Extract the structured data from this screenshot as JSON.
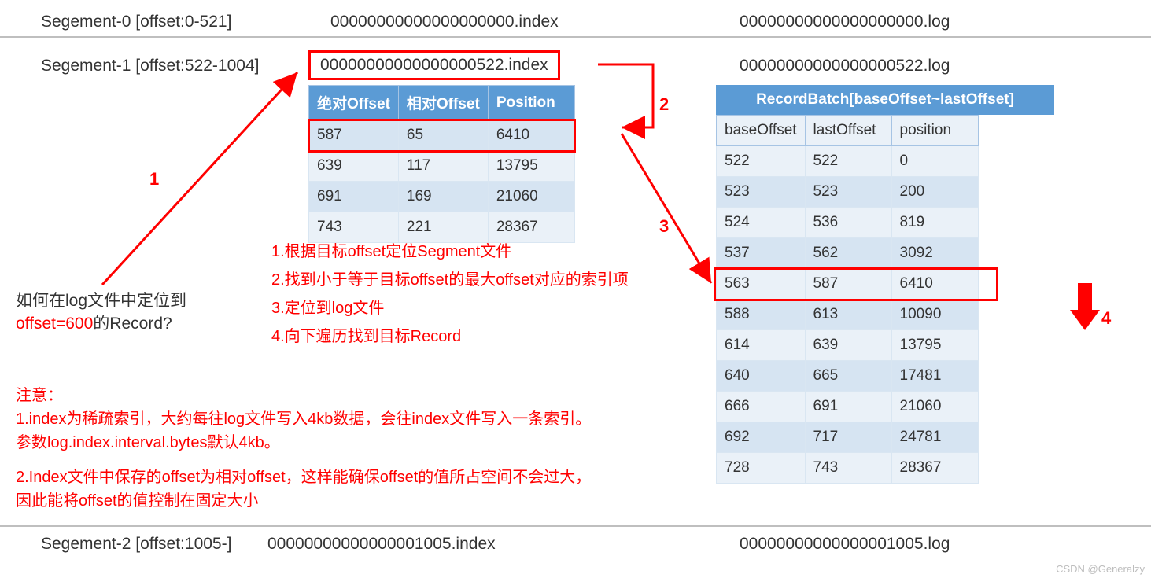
{
  "colors": {
    "red": "#ff0000",
    "header_bg": "#5b9bd5",
    "header_text": "#ffffff",
    "row_even": "#eaf1f8",
    "row_odd": "#d6e4f2",
    "border": "#d9e6f2",
    "hr": "#bfbfbf",
    "text": "#333333",
    "watermark": "#bdbdbd",
    "background": "#ffffff"
  },
  "typography": {
    "base_font": "Arial, Microsoft YaHei, sans-serif",
    "label_fontsize": 21,
    "table_fontsize": 19,
    "step_fontsize": 20,
    "watermark_fontsize": 13
  },
  "segments": {
    "seg0": {
      "label": "Segement-0 [offset:0-521]",
      "index": "00000000000000000000.index",
      "log": "00000000000000000000.log"
    },
    "seg1": {
      "label": "Segement-1 [offset:522-1004]",
      "index": "00000000000000000522.index",
      "log": "00000000000000000522.log"
    },
    "seg2": {
      "label": "Segement-2 [offset:1005-]",
      "index": "00000000000000001005.index",
      "log": "00000000000000001005.log"
    }
  },
  "index_table": {
    "headers": [
      "绝对Offset",
      "相对Offset",
      "Position"
    ],
    "rows": [
      [
        "587",
        "65",
        "6410"
      ],
      [
        "639",
        "117",
        "13795"
      ],
      [
        "691",
        "169",
        "21060"
      ],
      [
        "743",
        "221",
        "28367"
      ]
    ],
    "highlight_row_index": 0
  },
  "log_table": {
    "title": "RecordBatch[baseOffset~lastOffset]",
    "headers": [
      "baseOffset",
      "lastOffset",
      "position"
    ],
    "rows": [
      [
        "522",
        "522",
        "0"
      ],
      [
        "523",
        "523",
        "200"
      ],
      [
        "524",
        "536",
        "819"
      ],
      [
        "537",
        "562",
        "3092"
      ],
      [
        "563",
        "587",
        "6410"
      ],
      [
        "588",
        "613",
        "10090"
      ],
      [
        "614",
        "639",
        "13795"
      ],
      [
        "640",
        "665",
        "17481"
      ],
      [
        "666",
        "691",
        "21060"
      ],
      [
        "692",
        "717",
        "24781"
      ],
      [
        "728",
        "743",
        "28367"
      ]
    ],
    "highlight_row_index": 4
  },
  "question": {
    "line1": "如何在log文件中定位到",
    "line2_red": "offset=600",
    "line2_rest": "的Record?"
  },
  "steps": {
    "s1": "1.根据目标offset定位Segment文件",
    "s2": "2.找到小于等于目标offset的最大offset对应的索引项",
    "s3": "3.定位到log文件",
    "s4": "4.向下遍历找到目标Record"
  },
  "notes": {
    "title": "注意：",
    "n1a": "1.index为稀疏索引，大约每往log文件写入4kb数据，会往index文件写入一条索引。",
    "n1b": "参数log.index.interval.bytes默认4kb。",
    "n2a": "2.Index文件中保存的offset为相对offset，这样能确保offset的值所占空间不会过大，",
    "n2b": "因此能将offset的值控制在固定大小"
  },
  "step_labels": {
    "one": "1",
    "two": "2",
    "three": "3",
    "four": "4"
  },
  "watermark": "CSDN @Generalzy"
}
